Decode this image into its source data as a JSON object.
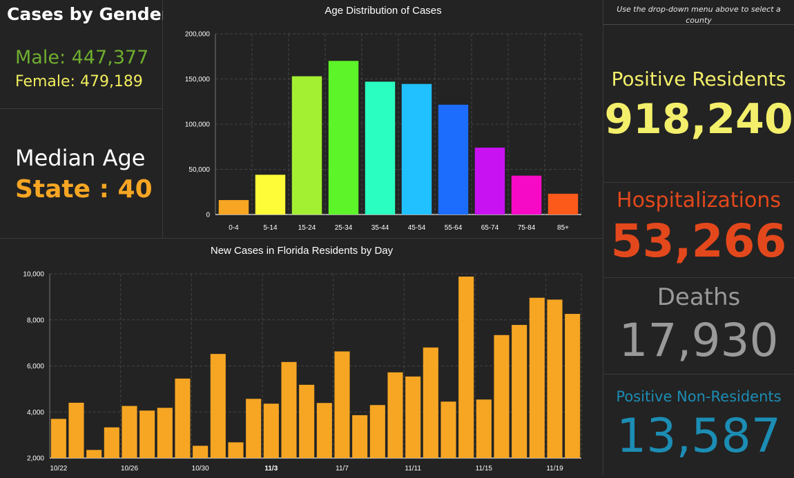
{
  "gender": {
    "title": "Cases by Gender",
    "male": "Male: 447,377",
    "female": "Female: 479,189"
  },
  "median_age": {
    "title": "Median Age",
    "state": "State : 40"
  },
  "note": "Use the drop-down menu above to select a county",
  "stats": {
    "positive_residents": {
      "label": "Positive Residents",
      "value": "918,240",
      "color": "#f3ef6b"
    },
    "hospitalizations": {
      "label": "Hospitalizations",
      "value": "53,266",
      "color": "#e3481c"
    },
    "deaths": {
      "label": "Deaths",
      "value": "17,930",
      "color": "#9a9a9a"
    },
    "non_residents": {
      "label": "Positive Non-Residents",
      "value": "13,587",
      "color": "#1c8db4"
    }
  },
  "chart_data": [
    {
      "type": "bar",
      "title": "Age Distribution of Cases",
      "categories": [
        "0-4",
        "5-14",
        "15-24",
        "25-34",
        "35-44",
        "45-54",
        "55-64",
        "65-74",
        "75-84",
        "85+"
      ],
      "values": [
        16000,
        44000,
        153000,
        170000,
        147000,
        144500,
        121500,
        74000,
        43000,
        23000
      ],
      "colors": [
        "#f6a623",
        "#fefc38",
        "#a3f032",
        "#5ef42a",
        "#2affc1",
        "#21c1ff",
        "#1c6dfd",
        "#c812f2",
        "#f70ac6",
        "#fb5a1b"
      ],
      "ylim": [
        0,
        200000
      ],
      "yticks": [
        "0",
        "50,000",
        "100,000",
        "150,000",
        "200,000"
      ],
      "ytick_values": [
        0,
        50000,
        100000,
        150000,
        200000
      ],
      "grid": true
    },
    {
      "type": "bar",
      "title": "New Cases in Florida Residents by Day",
      "x": [
        "10/22",
        "10/23",
        "10/24",
        "10/25",
        "10/26",
        "10/27",
        "10/28",
        "10/29",
        "10/30",
        "10/31",
        "11/1",
        "11/2",
        "11/3",
        "11/4",
        "11/5",
        "11/6",
        "11/7",
        "11/8",
        "11/9",
        "11/10",
        "11/11",
        "11/12",
        "11/13",
        "11/14",
        "11/15",
        "11/16",
        "11/17",
        "11/18",
        "11/19",
        "11/20"
      ],
      "values": [
        3700,
        4400,
        2350,
        3330,
        4260,
        4060,
        4180,
        5450,
        2530,
        6520,
        2680,
        4570,
        4360,
        6170,
        5180,
        4390,
        6630,
        3860,
        4300,
        5720,
        5540,
        6800,
        4450,
        9880,
        4540,
        7340,
        7780,
        8960,
        8880,
        8260
      ],
      "color": "#f6a623",
      "ylim": [
        2000,
        10000
      ],
      "yticks": [
        "2,000",
        "4,000",
        "6,000",
        "8,000",
        "10,000"
      ],
      "ytick_values": [
        2000,
        4000,
        6000,
        8000,
        10000
      ],
      "xtick_labels": [
        "10/22",
        "10/26",
        "10/30",
        "11/3",
        "11/7",
        "11/11",
        "11/15",
        "11/19"
      ],
      "xtick_indices": [
        0,
        4,
        8,
        12,
        16,
        20,
        24,
        28
      ],
      "grid": true
    }
  ]
}
